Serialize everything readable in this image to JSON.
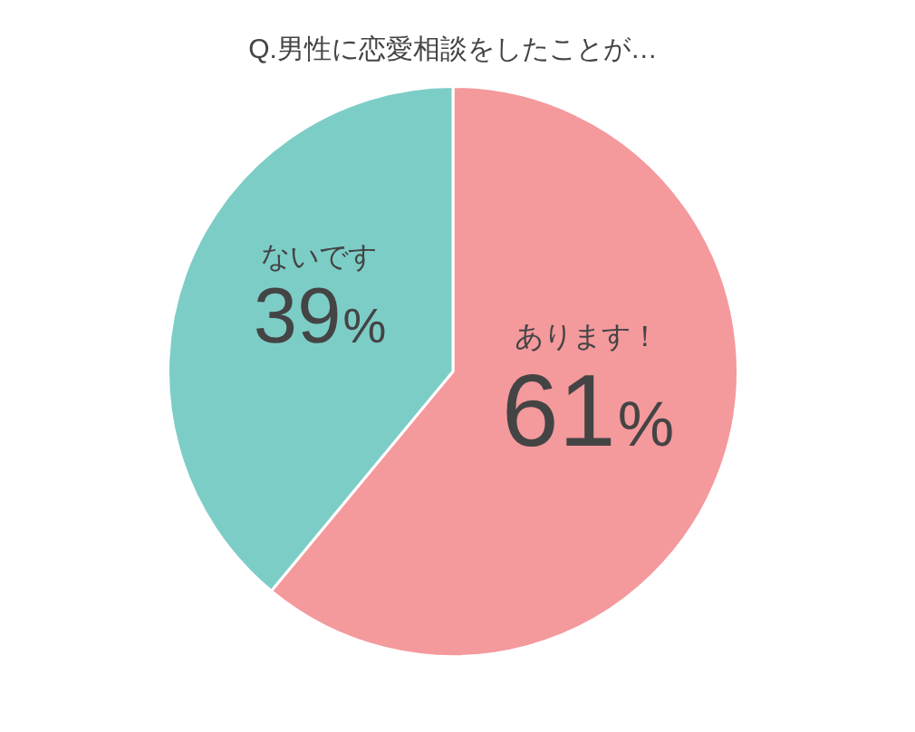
{
  "chart_data": {
    "type": "pie",
    "title": "Q.男性に恋愛相談をしたことが…",
    "categories": [
      "あります！",
      "ないです"
    ],
    "values": [
      61,
      39
    ],
    "colors": [
      "#f4999c",
      "#7dcdc7"
    ],
    "value_labels": [
      "61%",
      "39%"
    ],
    "legend": false
  }
}
